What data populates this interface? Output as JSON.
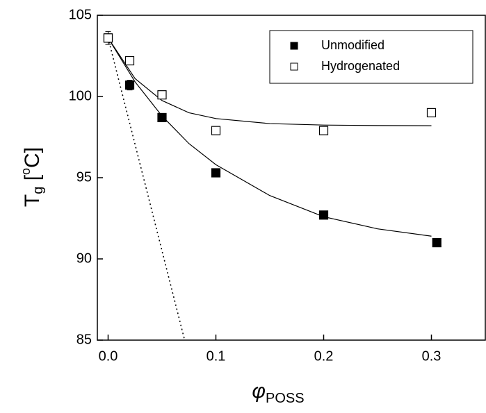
{
  "chart_data": {
    "type": "scatter",
    "xlabel": {
      "main": "φ",
      "sub": "POSS"
    },
    "ylabel": {
      "main": "T",
      "sub": "g",
      "open": " [",
      "sup": "o",
      "close": "C]"
    },
    "xlim": [
      -0.01,
      0.35
    ],
    "ylim": [
      85,
      105
    ],
    "xticks": [
      {
        "value": 0,
        "label": "0.0"
      },
      0.1,
      0.2,
      0.3
    ],
    "yticks": [
      85,
      90,
      95,
      100,
      105
    ],
    "legend": "upper right",
    "series": [
      {
        "name": "Unmodified",
        "marker": "filled",
        "color": "#000000",
        "x": [
          0,
          0.02,
          0.05,
          0.1,
          0.2,
          0.305
        ],
        "values": [
          103.6,
          100.7,
          98.7,
          95.3,
          92.7,
          91.0
        ],
        "errors": [
          0.4,
          0.3,
          null,
          null,
          null,
          null
        ]
      },
      {
        "name": "Hydrogenated",
        "marker": "open",
        "color": "#000000",
        "x": [
          0,
          0.02,
          0.05,
          0.1,
          0.2,
          0.3
        ],
        "values": [
          103.6,
          102.2,
          100.1,
          97.9,
          97.9,
          99.0
        ]
      }
    ],
    "fits": [
      {
        "style": "solid",
        "x": [
          0,
          0.025,
          0.05,
          0.075,
          0.1,
          0.15,
          0.2,
          0.25,
          0.3
        ],
        "values": [
          103.6,
          100.9,
          98.8,
          97.1,
          95.8,
          93.9,
          92.6,
          91.85,
          91.4
        ]
      },
      {
        "style": "solid",
        "x": [
          0,
          0.025,
          0.05,
          0.075,
          0.1,
          0.15,
          0.2,
          0.25,
          0.3
        ],
        "values": [
          103.6,
          101.1,
          99.75,
          99.0,
          98.64,
          98.33,
          98.24,
          98.21,
          98.2
        ]
      },
      {
        "style": "dotted",
        "x": [
          0,
          0.071
        ],
        "values": [
          103.6,
          85
        ]
      }
    ]
  }
}
